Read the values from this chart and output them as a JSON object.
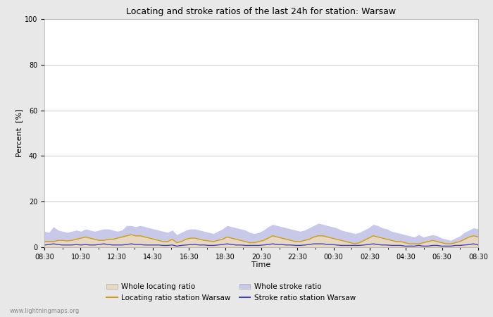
{
  "title": "Locating and stroke ratios of the last 24h for station: Warsaw",
  "xlabel": "Time",
  "ylabel": "Percent  [%]",
  "ylim": [
    0,
    100
  ],
  "yticks": [
    0,
    20,
    40,
    60,
    80,
    100
  ],
  "yticks_minor": [
    10,
    30,
    50,
    70,
    90
  ],
  "x_labels": [
    "08:30",
    "10:30",
    "12:30",
    "14:30",
    "16:30",
    "18:30",
    "20:30",
    "22:30",
    "00:30",
    "02:30",
    "04:30",
    "06:30",
    "08:30"
  ],
  "watermark": "www.lightningmaps.org",
  "bg_color": "#e8e8e8",
  "plot_bg_color": "#ffffff",
  "grid_color": "#cccccc",
  "whole_locating_color": "#e8d8c0",
  "whole_stroke_color": "#c8c8e8",
  "locating_line_color": "#c8a020",
  "stroke_line_color": "#4040c0",
  "whole_locating_ratio": [
    2.5,
    2.5,
    2.5,
    3.0,
    3.0,
    2.8,
    3.0,
    3.5,
    4.0,
    4.5,
    4.0,
    3.5,
    3.0,
    3.0,
    3.5,
    3.5,
    4.0,
    4.5,
    5.0,
    5.5,
    5.0,
    5.0,
    4.5,
    4.0,
    3.5,
    3.0,
    2.5,
    2.5,
    3.5,
    2.0,
    2.5,
    3.5,
    4.0,
    4.0,
    3.5,
    3.0,
    2.8,
    2.5,
    3.0,
    3.5,
    4.5,
    4.0,
    3.5,
    3.0,
    2.5,
    2.0,
    2.0,
    2.5,
    3.0,
    4.0,
    5.0,
    4.5,
    4.0,
    3.5,
    3.0,
    2.5,
    2.5,
    3.0,
    3.5,
    4.5,
    5.0,
    5.0,
    4.5,
    4.0,
    3.5,
    3.0,
    2.5,
    2.0,
    1.5,
    2.0,
    3.0,
    4.0,
    5.0,
    4.5,
    4.0,
    3.5,
    3.0,
    2.5,
    2.5,
    2.0,
    1.5,
    1.5,
    1.5,
    2.0,
    2.5,
    3.0,
    2.5,
    2.0,
    1.5,
    1.5,
    2.0,
    2.5,
    3.5,
    4.5,
    5.0,
    4.5
  ],
  "whole_stroke_ratio": [
    7.0,
    6.5,
    9.0,
    7.5,
    7.0,
    6.5,
    7.0,
    7.5,
    7.0,
    8.0,
    7.5,
    7.0,
    7.5,
    8.0,
    8.0,
    7.5,
    7.0,
    7.5,
    9.5,
    9.5,
    9.0,
    9.5,
    9.0,
    8.5,
    8.0,
    7.5,
    7.0,
    6.5,
    7.5,
    5.5,
    6.5,
    7.5,
    8.0,
    8.0,
    7.5,
    7.0,
    6.5,
    6.0,
    7.0,
    8.0,
    9.5,
    9.0,
    8.5,
    8.0,
    7.5,
    6.5,
    6.0,
    6.5,
    7.5,
    9.0,
    10.0,
    9.5,
    9.0,
    8.5,
    8.0,
    7.5,
    7.0,
    7.5,
    8.5,
    9.5,
    10.5,
    10.0,
    9.5,
    9.0,
    8.5,
    7.5,
    7.0,
    6.5,
    6.0,
    6.5,
    7.5,
    8.5,
    10.0,
    9.5,
    8.5,
    8.0,
    7.0,
    6.5,
    6.0,
    5.5,
    5.0,
    4.5,
    5.5,
    4.5,
    5.0,
    5.5,
    5.0,
    4.0,
    3.5,
    3.0,
    4.0,
    5.0,
    6.5,
    7.5,
    8.5,
    8.0
  ],
  "locating_line": [
    2.5,
    2.5,
    2.5,
    3.0,
    3.0,
    2.8,
    3.0,
    3.5,
    4.0,
    4.5,
    4.0,
    3.5,
    3.0,
    3.0,
    3.5,
    3.5,
    4.0,
    4.5,
    5.0,
    5.5,
    5.0,
    5.0,
    4.5,
    4.0,
    3.5,
    3.0,
    2.5,
    2.5,
    3.5,
    2.0,
    2.5,
    3.5,
    4.0,
    4.0,
    3.5,
    3.0,
    2.8,
    2.5,
    3.0,
    3.5,
    4.5,
    4.0,
    3.5,
    3.0,
    2.5,
    2.0,
    2.0,
    2.5,
    3.0,
    4.0,
    5.0,
    4.5,
    4.0,
    3.5,
    3.0,
    2.5,
    2.5,
    3.0,
    3.5,
    4.5,
    5.0,
    5.0,
    4.5,
    4.0,
    3.5,
    3.0,
    2.5,
    2.0,
    1.5,
    2.0,
    3.0,
    4.0,
    5.0,
    4.5,
    4.0,
    3.5,
    3.0,
    2.5,
    2.5,
    2.0,
    1.5,
    1.5,
    1.5,
    2.0,
    2.5,
    3.0,
    2.5,
    2.0,
    1.5,
    1.5,
    2.0,
    2.5,
    3.5,
    4.5,
    5.0,
    4.5
  ],
  "stroke_line": [
    1.0,
    1.2,
    1.5,
    1.2,
    1.0,
    1.0,
    1.0,
    1.2,
    1.0,
    1.2,
    1.0,
    1.0,
    1.2,
    1.5,
    1.2,
    1.0,
    1.0,
    1.0,
    1.2,
    1.5,
    1.2,
    1.2,
    1.0,
    1.0,
    1.0,
    1.0,
    0.8,
    0.8,
    1.0,
    0.5,
    0.8,
    1.0,
    1.2,
    1.2,
    1.0,
    1.0,
    0.8,
    0.8,
    1.0,
    1.2,
    1.5,
    1.2,
    1.0,
    1.0,
    0.8,
    0.8,
    0.8,
    0.8,
    1.0,
    1.2,
    1.5,
    1.2,
    1.2,
    1.0,
    1.0,
    0.8,
    0.8,
    1.0,
    1.2,
    1.5,
    1.5,
    1.5,
    1.2,
    1.2,
    1.0,
    0.8,
    0.8,
    0.8,
    0.8,
    0.8,
    1.0,
    1.2,
    1.5,
    1.2,
    1.0,
    1.0,
    0.8,
    0.8,
    0.8,
    0.5,
    0.5,
    0.5,
    0.8,
    0.5,
    0.5,
    0.8,
    0.8,
    0.5,
    0.5,
    0.5,
    0.8,
    0.8,
    1.0,
    1.2,
    1.5,
    1.0
  ]
}
